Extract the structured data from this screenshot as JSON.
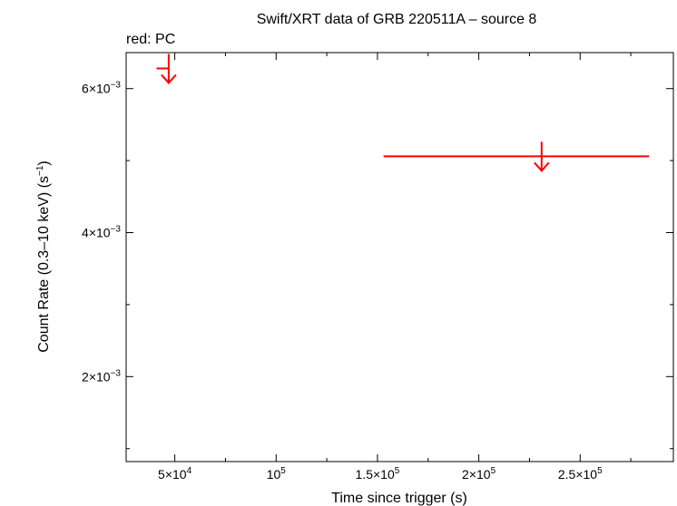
{
  "chart_data": {
    "type": "scatter",
    "title": "Swift/XRT data of GRB 220511A – source 8",
    "subtitle": "red: PC",
    "xlabel": "Time since trigger (s)",
    "ylabel": "Count Rate (0.3–10 keV) (s",
    "ylabel_sup": "−1",
    "ylabel_close": ")",
    "xlim": [
      26000,
      296000
    ],
    "ylim": [
      0.00082,
      0.0065
    ],
    "x_ticks": [
      {
        "value": 50000,
        "base": "5×10",
        "exp": "4"
      },
      {
        "value": 100000,
        "base": "10",
        "exp": "5"
      },
      {
        "value": 150000,
        "base": "1.5×10",
        "exp": "5"
      },
      {
        "value": 200000,
        "base": "2×10",
        "exp": "5"
      },
      {
        "value": 250000,
        "base": "2.5×10",
        "exp": "5"
      }
    ],
    "y_ticks": [
      {
        "value": 0.002,
        "base": "2×10",
        "exp": "−3"
      },
      {
        "value": 0.004,
        "base": "4×10",
        "exp": "−3"
      },
      {
        "value": 0.006,
        "base": "6×10",
        "exp": "−3"
      }
    ],
    "x_minor_ticks": [
      75000,
      125000,
      175000,
      225000,
      275000
    ],
    "y_minor_ticks": [
      0.001,
      0.003,
      0.005
    ],
    "grid": false,
    "series": [
      {
        "name": "PC",
        "color": "#ff0000",
        "points": [
          {
            "x": 47000,
            "x_err_low": 6000,
            "x_err_high": 0,
            "y": 0.00628,
            "upper_limit": true
          },
          {
            "x": 231000,
            "x_err_low": 78000,
            "x_err_high": 53000,
            "y": 0.00506,
            "upper_limit": true
          }
        ]
      }
    ]
  }
}
